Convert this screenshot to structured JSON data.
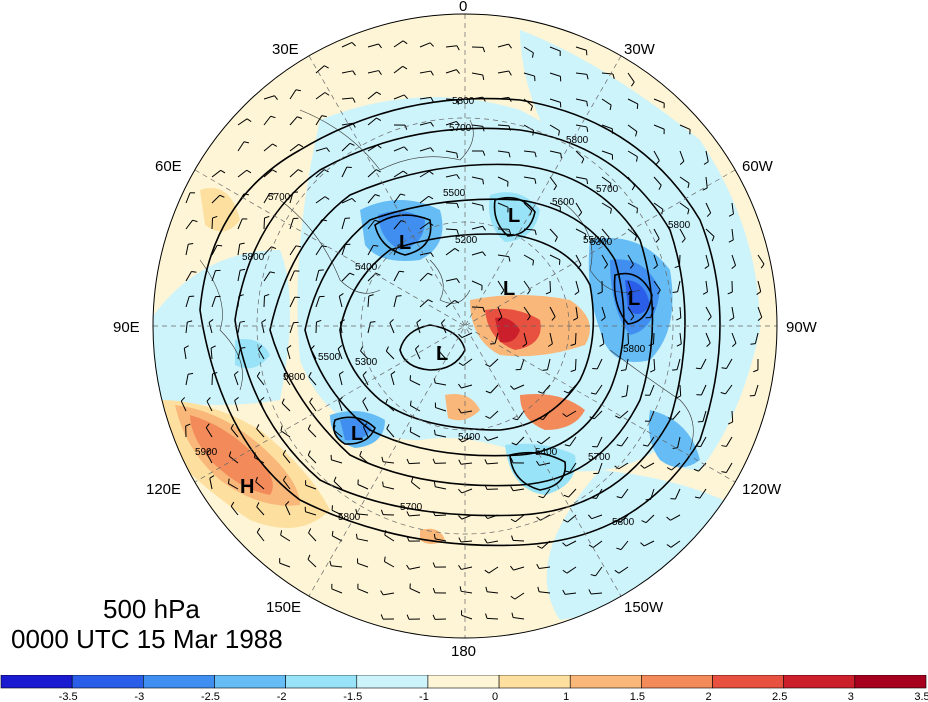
{
  "title": {
    "level": "500 hPa",
    "valid_time": "0000 UTC 15 Mar 1988"
  },
  "longitude_labels": {
    "lon_0": "0",
    "lon_30e": "30E",
    "lon_30w": "30W",
    "lon_60e": "60E",
    "lon_60w": "60W",
    "lon_90e": "90E",
    "lon_90w": "90W",
    "lon_120e": "120E",
    "lon_120w": "120W",
    "lon_150e": "150E",
    "lon_150w": "150W",
    "lon_180": "180"
  },
  "contour_labels": [
    "5800",
    "5700",
    "5600",
    "5500",
    "5400",
    "5300",
    "5200",
    "5900"
  ],
  "pressure_centers": [
    {
      "type": "L",
      "name": "low-north-europe"
    },
    {
      "type": "L",
      "name": "low-scandinavia"
    },
    {
      "type": "L",
      "name": "low-arctic"
    },
    {
      "type": "L",
      "name": "low-hudson-bay"
    },
    {
      "type": "L",
      "name": "low-siberia"
    },
    {
      "type": "L",
      "name": "low-east-siberia"
    },
    {
      "type": "H",
      "name": "high-east-asia"
    }
  ],
  "colorbar": {
    "colors": [
      "#1a1ad0",
      "#2b5ee8",
      "#3f8ef0",
      "#66bdf5",
      "#99e3f8",
      "#cdf3fb",
      "#fdf5d5",
      "#fde0a0",
      "#f9b77a",
      "#f38a5a",
      "#e8503f",
      "#cc1f2c",
      "#a6001e"
    ],
    "tick_labels": [
      "-3.5",
      "-3",
      "-2.5",
      "-2",
      "-1.5",
      "-1",
      "0",
      "1",
      "1.5",
      "2",
      "2.5",
      "3",
      "3.5"
    ]
  }
}
